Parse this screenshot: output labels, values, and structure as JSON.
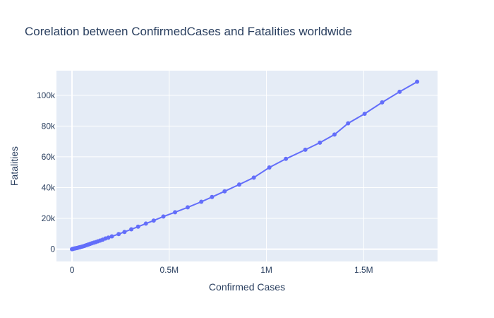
{
  "chart_data": {
    "type": "line",
    "title": "Corelation between ConfirmedCases and Fatalities worldwide",
    "xlabel": "Confirmed Cases",
    "ylabel": "Fatalities",
    "xlim": [
      -80000,
      1880000
    ],
    "ylim": [
      -8000,
      116000
    ],
    "x_ticks": [
      {
        "value": 0,
        "label": "0"
      },
      {
        "value": 500000,
        "label": "0.5M"
      },
      {
        "value": 1000000,
        "label": "1M"
      },
      {
        "value": 1500000,
        "label": "1.5M"
      }
    ],
    "y_ticks": [
      {
        "value": 0,
        "label": "0"
      },
      {
        "value": 20000,
        "label": "20k"
      },
      {
        "value": 40000,
        "label": "40k"
      },
      {
        "value": 60000,
        "label": "60k"
      },
      {
        "value": 80000,
        "label": "80k"
      },
      {
        "value": 100000,
        "label": "100k"
      }
    ],
    "grid": true,
    "mode": "lines+markers",
    "colors": {
      "series": "#636efa",
      "plot_bg": "#e5ecf6",
      "grid": "#ffffff",
      "text": "#2a3f5f"
    },
    "series": [
      {
        "x": [
          0,
          1000,
          3000,
          5000,
          8000,
          12000,
          16000,
          20000,
          25000,
          30000,
          36000,
          42000,
          50000,
          58000,
          66000,
          75000,
          84000,
          93000,
          102000,
          112000,
          122000,
          133000,
          145000,
          158000,
          172000,
          187000,
          205000,
          240000,
          270000,
          305000,
          340000,
          380000,
          420000,
          470000,
          530000,
          595000,
          665000,
          720000,
          785000,
          860000,
          935000,
          1015000,
          1100000,
          1200000,
          1275000,
          1350000,
          1420000,
          1505000,
          1595000,
          1685000,
          1775000
        ],
        "y": [
          0,
          50,
          120,
          200,
          300,
          400,
          500,
          600,
          750,
          900,
          1100,
          1300,
          1600,
          1900,
          2200,
          2600,
          3000,
          3400,
          3800,
          4200,
          4600,
          5100,
          5600,
          6200,
          6900,
          7500,
          8300,
          9800,
          11200,
          12900,
          14600,
          16600,
          18600,
          21200,
          24000,
          27200,
          30800,
          33900,
          37600,
          42000,
          46500,
          53100,
          58700,
          64600,
          69200,
          74500,
          81800,
          88000,
          95400,
          102300,
          108800
        ]
      }
    ]
  }
}
